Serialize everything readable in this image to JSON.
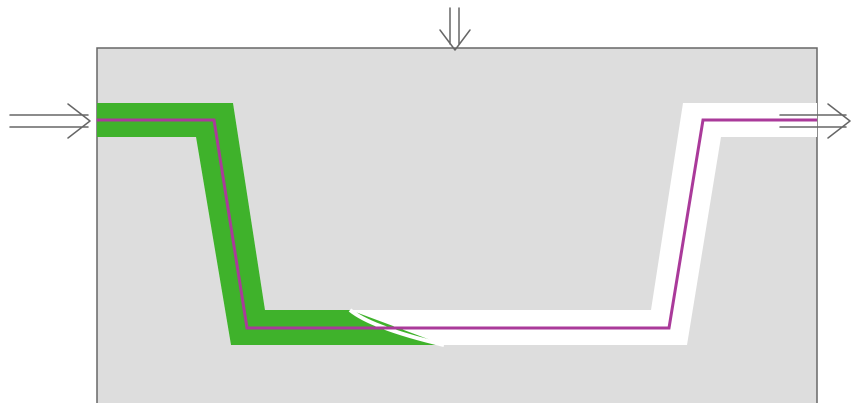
{
  "diagram": {
    "colors": {
      "background": "#ffffff",
      "block_fill": "#dddddd",
      "block_stroke": "#666666",
      "channel_fill": "#ffffff",
      "filled_region": "#3fb22b",
      "center_line": "#aa3a9a",
      "arrow": "#666666"
    },
    "icons": {
      "top": "double-arrow-down-icon",
      "left": "double-arrow-right-icon",
      "right": "double-arrow-right-icon"
    }
  }
}
